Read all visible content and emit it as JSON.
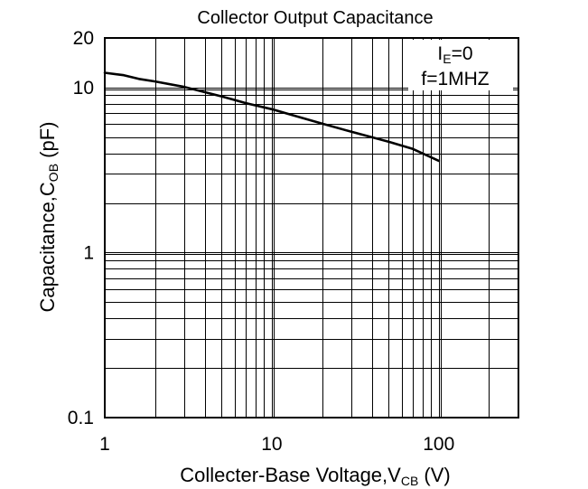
{
  "chart_data": {
    "type": "line",
    "title": "Collector Output Capacitance",
    "xlabel": {
      "main": "Collecter-Base Voltage,V",
      "sub": "CB",
      "unit": " (V)"
    },
    "ylabel": {
      "main": "Capacitance,C",
      "sub": "OB",
      "unit": " (pF)"
    },
    "x_scale": "log",
    "y_scale": "log",
    "xlim": [
      1,
      300
    ],
    "ylim": [
      0.1,
      20
    ],
    "x_ticks": [
      {
        "value": 1,
        "label": "1"
      },
      {
        "value": 10,
        "label": "10"
      },
      {
        "value": 100,
        "label": "100"
      }
    ],
    "y_ticks": [
      {
        "value": 0.1,
        "label": "0.1"
      },
      {
        "value": 1,
        "label": "1"
      },
      {
        "value": 10,
        "label": "10"
      },
      {
        "value": 20,
        "label": "20"
      }
    ],
    "grid": true,
    "annotation": {
      "line1": {
        "main": "I",
        "sub": "E",
        "rest": "=0"
      },
      "line2": "f=1MHZ",
      "placement": "top-right"
    },
    "series": [
      {
        "x": [
          1,
          1.3,
          1.6,
          2,
          3,
          5,
          7,
          10,
          20,
          30,
          50,
          70,
          100
        ],
        "y": [
          12.3,
          11.9,
          11.3,
          10.9,
          10.1,
          8.85,
          8.05,
          7.4,
          6.05,
          5.4,
          4.7,
          4.25,
          3.6
        ]
      }
    ]
  }
}
